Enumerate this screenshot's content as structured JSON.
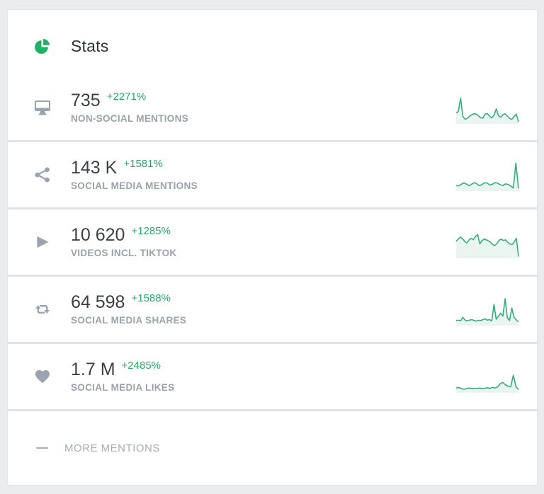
{
  "colors": {
    "accent_green": "#27ab68",
    "spark_line": "#34af7c",
    "spark_fill": "#ebf5f0",
    "icon_gray": "#9aa4b0"
  },
  "header": {
    "title": "Stats",
    "icon": "pie-chart-icon"
  },
  "stats": [
    {
      "icon": "monitor-icon",
      "value": "735",
      "change": "+2271%",
      "label": "NON-SOCIAL MENTIONS",
      "sparkline": [
        32,
        38,
        80,
        22,
        12,
        16,
        22,
        27,
        30,
        29,
        24,
        17,
        16,
        29,
        31,
        22,
        17,
        26,
        46,
        24,
        19,
        27,
        30,
        23,
        15,
        12,
        21,
        29,
        4
      ]
    },
    {
      "icon": "share-icon",
      "value": "143 K",
      "change": "+1581%",
      "label": "SOCIAL MEDIA MENTIONS",
      "sparkline": [
        16,
        15,
        20,
        24,
        20,
        15,
        20,
        25,
        21,
        15,
        19,
        25,
        23,
        17,
        20,
        25,
        23,
        18,
        16,
        21,
        19,
        14,
        8,
        88,
        6
      ]
    },
    {
      "icon": "play-icon",
      "value": "10 620",
      "change": "+1285%",
      "label": "VIDEOS INCL. TIKTOK",
      "sparkline": [
        52,
        60,
        66,
        60,
        52,
        47,
        57,
        62,
        58,
        68,
        74,
        44,
        54,
        60,
        57,
        54,
        49,
        42,
        39,
        46,
        56,
        59,
        55,
        57,
        49,
        44,
        42,
        50,
        62,
        3
      ]
    },
    {
      "icon": "retweet-icon",
      "value": "64 598",
      "change": "+1588%",
      "label": "SOCIAL MEDIA SHARES",
      "sparkline": [
        14,
        15,
        13,
        24,
        15,
        13,
        15,
        17,
        14,
        12,
        15,
        13,
        17,
        19,
        15,
        17,
        13,
        66,
        18,
        28,
        38,
        28,
        84,
        22,
        14,
        54,
        24,
        16,
        10
      ]
    },
    {
      "icon": "heart-icon",
      "value": "1.7 M",
      "change": "+2485%",
      "label": "SOCIAL MEDIA LIKES",
      "sparkline": [
        13,
        15,
        11,
        9,
        11,
        13,
        11,
        12,
        11,
        13,
        11,
        12,
        14,
        12,
        15,
        13,
        17,
        27,
        31,
        23,
        19,
        17,
        54,
        18,
        8
      ]
    }
  ],
  "footer": {
    "label": "MORE MENTIONS",
    "icon": "dash-icon"
  }
}
